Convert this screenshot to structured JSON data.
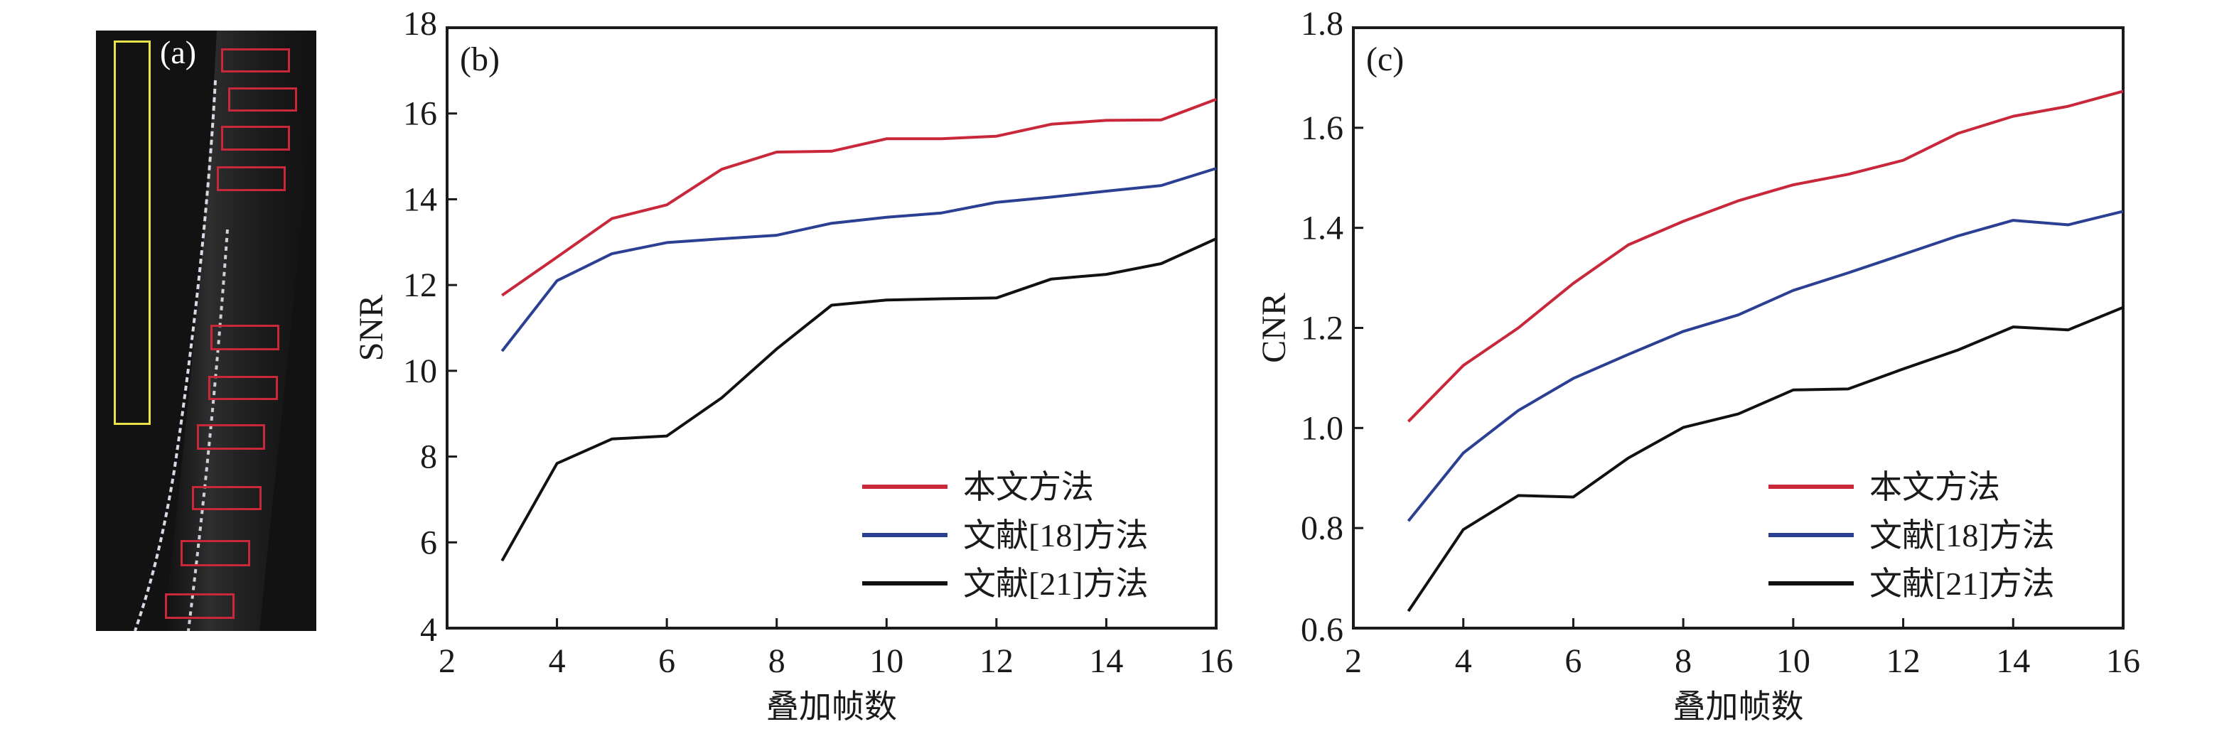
{
  "panel_a": {
    "label": "(a)",
    "image_description": "OCT B-scan with yellow background ROI and red signal ROIs",
    "roi_colors": {
      "background_roi": "#e8e14a",
      "signal_roi": "#c8283a"
    },
    "signal_roi_count": 10,
    "background_roi_count": 1
  },
  "legend": {
    "items": [
      {
        "label": "本文方法",
        "color": "#c8283a"
      },
      {
        "label": "文献[18]方法",
        "color": "#2b3f93"
      },
      {
        "label": "文献[21]方法",
        "color": "#111111"
      }
    ]
  },
  "chart_data": [
    {
      "type": "line",
      "panel_label": "(b)",
      "title": "",
      "xlabel": "叠加帧数",
      "ylabel": "SNR",
      "xlim": [
        2,
        16
      ],
      "ylim": [
        4,
        18
      ],
      "xticks": [
        2,
        4,
        6,
        8,
        10,
        12,
        14,
        16
      ],
      "yticks": [
        4,
        6,
        8,
        10,
        12,
        14,
        16,
        18
      ],
      "ytick_labels": [
        "4",
        "6",
        "8",
        "10",
        "12",
        "14",
        "16",
        "18"
      ],
      "xtick_labels": [
        "2",
        "4",
        "6",
        "8",
        "10",
        "12",
        "14",
        "16"
      ],
      "grid": false,
      "legend_position": "bottom-right",
      "x": [
        3,
        4,
        5,
        6,
        7,
        8,
        9,
        10,
        11,
        12,
        13,
        14,
        15,
        16
      ],
      "series": [
        {
          "name": "本文方法",
          "color": "#c8283a",
          "values": [
            11.76,
            12.65,
            13.55,
            13.87,
            14.7,
            15.1,
            15.12,
            15.41,
            15.41,
            15.47,
            15.75,
            15.84,
            15.85,
            16.33
          ]
        },
        {
          "name": "文献[18]方法",
          "color": "#2b3f93",
          "values": [
            10.46,
            12.1,
            12.73,
            12.99,
            13.08,
            13.16,
            13.44,
            13.58,
            13.68,
            13.93,
            14.05,
            14.19,
            14.32,
            14.72
          ]
        },
        {
          "name": "文献[21]方法",
          "color": "#111111",
          "values": [
            5.57,
            7.84,
            8.41,
            8.48,
            9.37,
            10.51,
            11.53,
            11.65,
            11.68,
            11.7,
            12.14,
            12.25,
            12.5,
            13.08
          ]
        }
      ]
    },
    {
      "type": "line",
      "panel_label": "(c)",
      "title": "",
      "xlabel": "叠加帧数",
      "ylabel": "CNR",
      "xlim": [
        2,
        16
      ],
      "ylim": [
        0.6,
        1.8
      ],
      "xticks": [
        2,
        4,
        6,
        8,
        10,
        12,
        14,
        16
      ],
      "yticks": [
        0.6,
        0.8,
        1.0,
        1.2,
        1.4,
        1.6,
        1.8
      ],
      "ytick_labels": [
        "0.6",
        "0.8",
        "1.0",
        "1.2",
        "1.4",
        "1.6",
        "1.8"
      ],
      "xtick_labels": [
        "2",
        "4",
        "6",
        "8",
        "10",
        "12",
        "14",
        "16"
      ],
      "grid": false,
      "legend_position": "bottom-right",
      "x": [
        3,
        4,
        5,
        6,
        7,
        8,
        9,
        10,
        11,
        12,
        13,
        14,
        15,
        16
      ],
      "series": [
        {
          "name": "本文方法",
          "color": "#c8283a",
          "values": [
            1.013,
            1.125,
            1.2,
            1.289,
            1.366,
            1.413,
            1.454,
            1.486,
            1.507,
            1.535,
            1.589,
            1.623,
            1.643,
            1.673
          ]
        },
        {
          "name": "文献[18]方法",
          "color": "#2b3f93",
          "values": [
            0.814,
            0.95,
            1.035,
            1.099,
            1.147,
            1.193,
            1.226,
            1.275,
            1.31,
            1.347,
            1.384,
            1.415,
            1.406,
            1.433
          ]
        },
        {
          "name": "文献[21]方法",
          "color": "#111111",
          "values": [
            0.634,
            0.797,
            0.865,
            0.862,
            0.94,
            1.001,
            1.028,
            1.076,
            1.078,
            1.118,
            1.156,
            1.202,
            1.196,
            1.241
          ]
        }
      ]
    }
  ]
}
